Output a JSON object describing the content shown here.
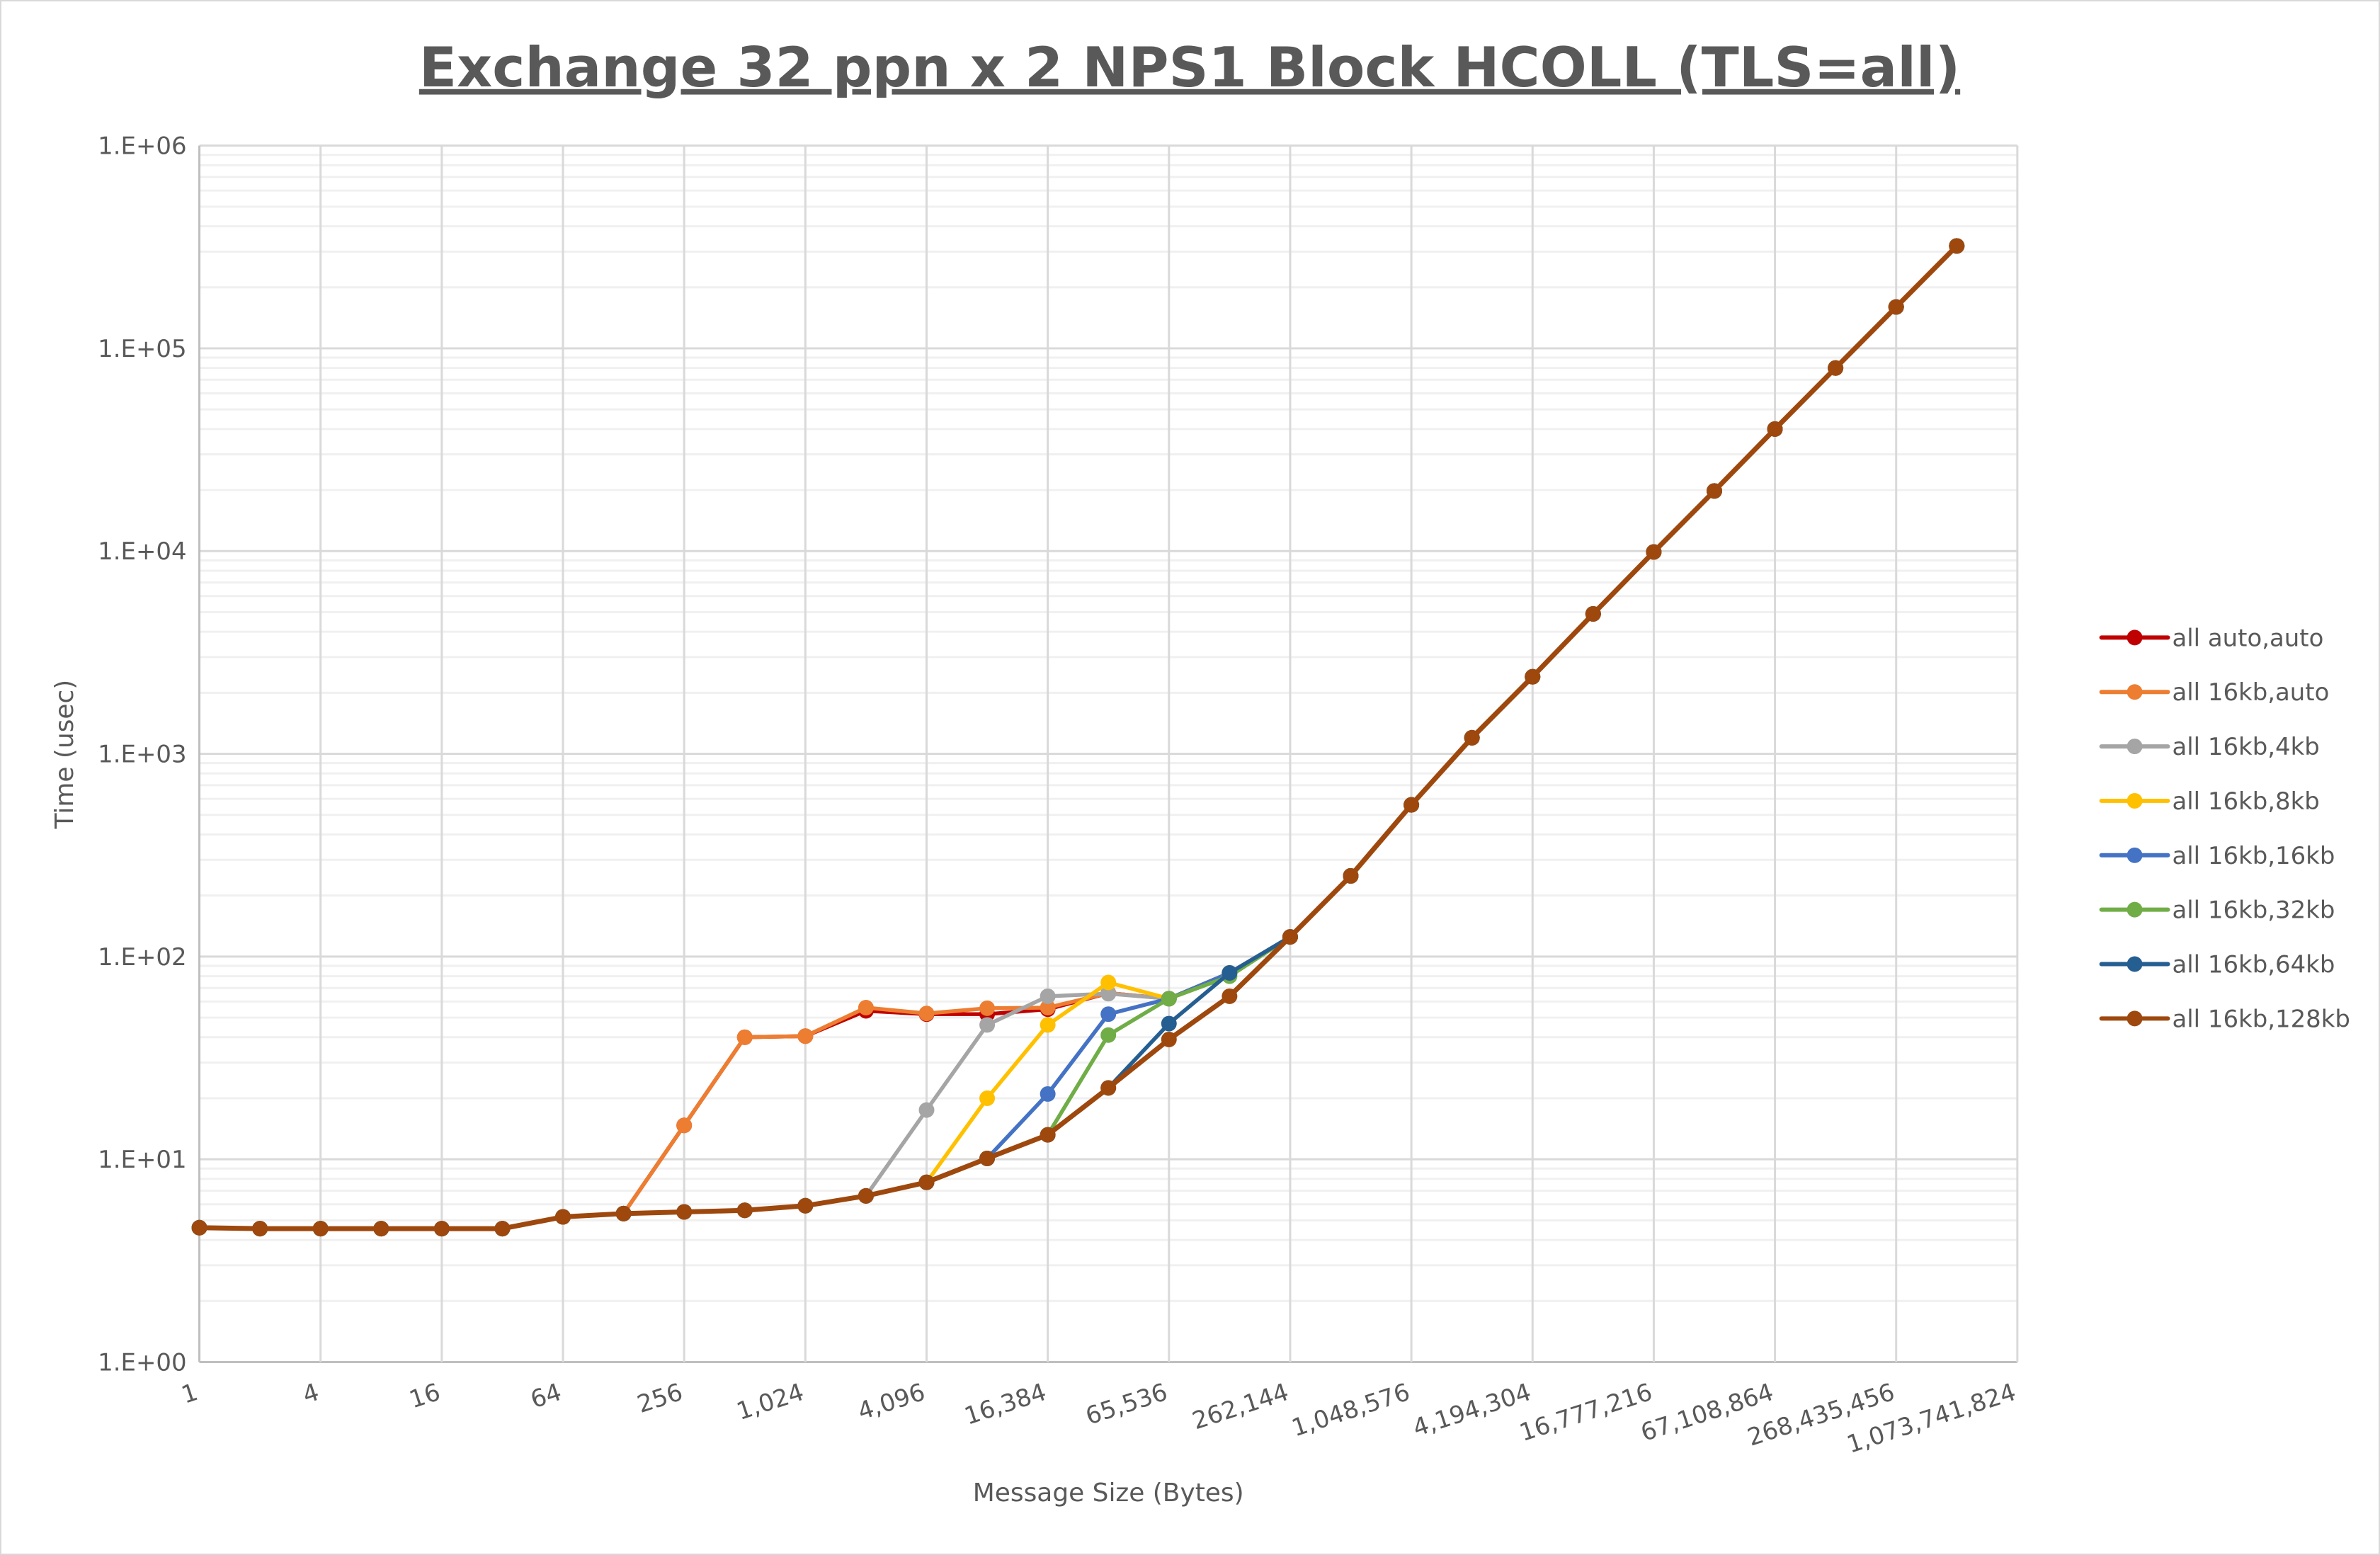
{
  "chart_data": {
    "type": "line",
    "title": "Exchange 32 ppn x 2 NPS1 Block HCOLL (TLS=all)",
    "xlabel": "Message Size (Bytes)",
    "ylabel": "Time (usec)",
    "x_scale": "log2",
    "y_scale": "log10",
    "xlim": [
      1,
      1073741824
    ],
    "ylim": [
      1,
      1000000
    ],
    "grid": true,
    "legend_position": "right",
    "x_tick_labels": [
      "1",
      "4",
      "16",
      "64",
      "256",
      "1,024",
      "4,096",
      "16,384",
      "65,536",
      "262,144",
      "1,048,576",
      "4,194,304",
      "16,777,216",
      "67,108,864",
      "268,435,456",
      "1,073,741,824"
    ],
    "y_tick_labels": [
      "1.E+00",
      "1.E+01",
      "1.E+02",
      "1.E+03",
      "1.E+04",
      "1.E+05",
      "1.E+06"
    ],
    "x": [
      1,
      2,
      4,
      8,
      16,
      32,
      64,
      128,
      256,
      512,
      1024,
      2048,
      4096,
      8192,
      16384,
      32768,
      65536,
      131072,
      262144,
      524288,
      1048576,
      2097152,
      4194304,
      8388608,
      16777216,
      33554432,
      67108864,
      134217728,
      268435456,
      536870912
    ],
    "series": [
      {
        "name": "all auto,auto",
        "color": "#C00000",
        "values": [
          4.6,
          4.55,
          4.55,
          4.55,
          4.55,
          4.55,
          5.2,
          5.4,
          14.7,
          40,
          40.5,
          54,
          52,
          52,
          55,
          66,
          62,
          83,
          125,
          250,
          560,
          1200,
          2400,
          4900,
          9900,
          19800,
          40000,
          80000,
          160000,
          320000
        ]
      },
      {
        "name": "all 16kb,auto",
        "color": "#ED7D31",
        "values": [
          4.6,
          4.55,
          4.55,
          4.55,
          4.55,
          4.55,
          5.2,
          5.4,
          14.7,
          40,
          40.5,
          56,
          52.4,
          55.6,
          56,
          66,
          62,
          83,
          125,
          250,
          560,
          1200,
          2400,
          4900,
          9900,
          19800,
          40000,
          80000,
          160000,
          320000
        ]
      },
      {
        "name": "all 16kb,4kb",
        "color": "#A5A5A5",
        "values": [
          4.6,
          4.55,
          4.55,
          4.55,
          4.55,
          4.55,
          5.2,
          5.4,
          5.5,
          5.6,
          5.9,
          6.6,
          17.5,
          46,
          63.7,
          65.6,
          62,
          83,
          125,
          250,
          560,
          1200,
          2400,
          4900,
          9900,
          19800,
          40000,
          80000,
          160000,
          320000
        ]
      },
      {
        "name": "all 16kb,8kb",
        "color": "#FFC000",
        "values": [
          4.6,
          4.55,
          4.55,
          4.55,
          4.55,
          4.55,
          5.2,
          5.4,
          5.5,
          5.6,
          5.9,
          6.6,
          7.7,
          20,
          46,
          74.5,
          62,
          83,
          125,
          250,
          560,
          1200,
          2400,
          4900,
          9900,
          19800,
          40000,
          80000,
          160000,
          320000
        ]
      },
      {
        "name": "all 16kb,16kb",
        "color": "#4472C4",
        "values": [
          4.6,
          4.55,
          4.55,
          4.55,
          4.55,
          4.55,
          5.2,
          5.4,
          5.5,
          5.6,
          5.9,
          6.6,
          7.7,
          10.1,
          21,
          52,
          62,
          83,
          125,
          250,
          560,
          1200,
          2400,
          4900,
          9900,
          19800,
          40000,
          80000,
          160000,
          320000
        ]
      },
      {
        "name": "all 16kb,32kb",
        "color": "#70AD47",
        "values": [
          4.6,
          4.55,
          4.55,
          4.55,
          4.55,
          4.55,
          5.2,
          5.4,
          5.5,
          5.6,
          5.9,
          6.6,
          7.7,
          10.1,
          13.2,
          41,
          62,
          80,
          125,
          250,
          560,
          1200,
          2400,
          4900,
          9900,
          19800,
          40000,
          80000,
          160000,
          320000
        ]
      },
      {
        "name": "all 16kb,64kb",
        "color": "#255E91",
        "values": [
          4.6,
          4.55,
          4.55,
          4.55,
          4.55,
          4.55,
          5.2,
          5.4,
          5.5,
          5.6,
          5.9,
          6.6,
          7.7,
          10.1,
          13.2,
          22.5,
          46.7,
          83,
          125,
          250,
          560,
          1200,
          2400,
          4900,
          9900,
          19800,
          40000,
          80000,
          160000,
          320000
        ]
      },
      {
        "name": "all 16kb,128kb",
        "color": "#9E480E",
        "values": [
          4.6,
          4.55,
          4.55,
          4.55,
          4.55,
          4.55,
          5.2,
          5.4,
          5.5,
          5.6,
          5.9,
          6.6,
          7.7,
          10.1,
          13.2,
          22.5,
          39,
          63.7,
          125,
          250,
          560,
          1200,
          2400,
          4900,
          9900,
          19800,
          40000,
          80000,
          160000,
          320000
        ]
      }
    ]
  }
}
